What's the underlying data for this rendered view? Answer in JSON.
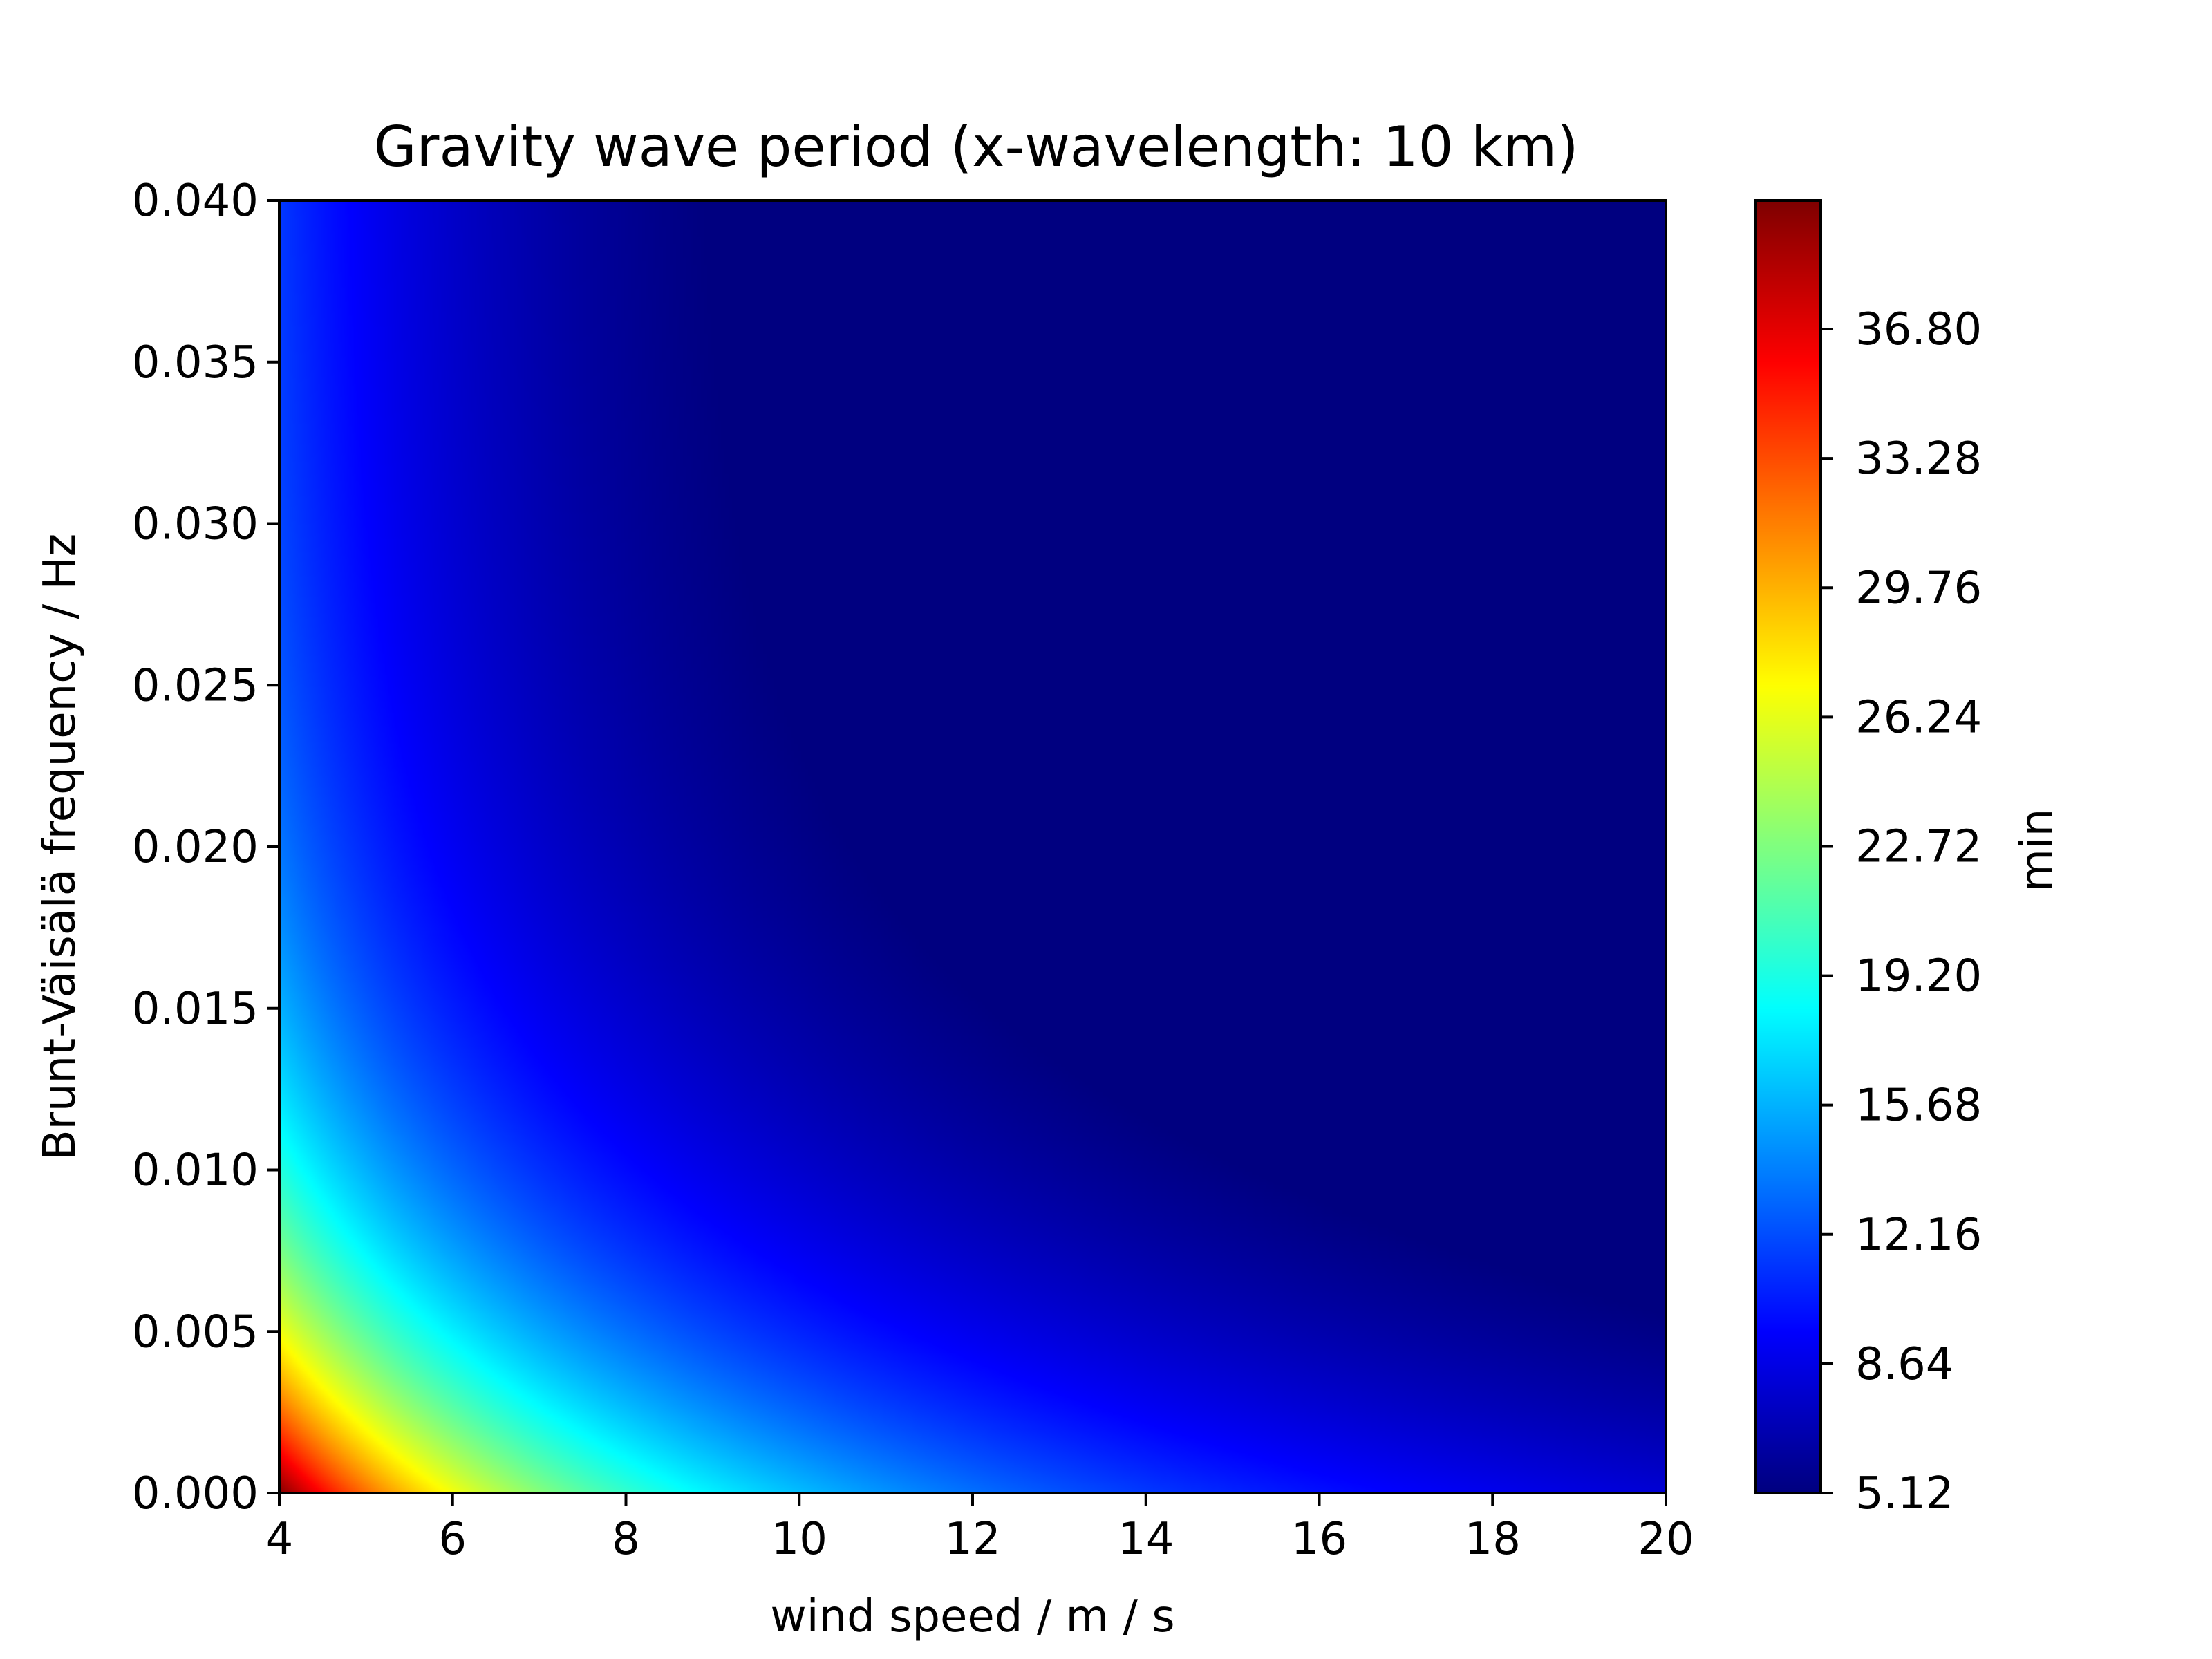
{
  "chart_data": {
    "type": "heatmap",
    "title": "Gravity wave period (x-wavelength: 10 km)",
    "xlabel": "wind speed / m / s",
    "ylabel": "Brunt-Väisälä frequency / Hz",
    "xlim": [
      4,
      20
    ],
    "ylim": [
      0.0,
      0.04
    ],
    "x_ticks": [
      4,
      6,
      8,
      10,
      12,
      14,
      16,
      18,
      20
    ],
    "x_tick_labels": [
      "4",
      "6",
      "8",
      "10",
      "12",
      "14",
      "16",
      "18",
      "20"
    ],
    "y_ticks": [
      0.0,
      0.005,
      0.01,
      0.015,
      0.02,
      0.025,
      0.03,
      0.035,
      0.04
    ],
    "y_tick_labels": [
      "0.000",
      "0.005",
      "0.010",
      "0.015",
      "0.020",
      "0.025",
      "0.030",
      "0.035",
      "0.040"
    ],
    "colormap": "jet",
    "colorbar": {
      "label": "min",
      "range": [
        5.12,
        40.3
      ],
      "ticks": [
        5.12,
        8.64,
        12.16,
        15.68,
        19.2,
        22.72,
        26.24,
        29.76,
        33.28,
        36.8
      ],
      "tick_labels": [
        "5.12",
        "8.64",
        "12.16",
        "15.68",
        "19.20",
        "22.72",
        "26.24",
        "29.76",
        "33.28",
        "36.80"
      ]
    },
    "sampled_values": [
      {
        "wind_speed": 4,
        "brunt_vaisala_frequency": 0.0,
        "period_min": 40.3
      },
      {
        "wind_speed": 6,
        "brunt_vaisala_frequency": 0.0,
        "period_min": 26.5
      },
      {
        "wind_speed": 9,
        "brunt_vaisala_frequency": 0.0,
        "period_min": 18.0
      },
      {
        "wind_speed": 12,
        "brunt_vaisala_frequency": 0.0,
        "period_min": 13.2
      },
      {
        "wind_speed": 20,
        "brunt_vaisala_frequency": 0.0,
        "period_min": 8.2
      },
      {
        "wind_speed": 4,
        "brunt_vaisala_frequency": 0.005,
        "period_min": 29.0
      },
      {
        "wind_speed": 4,
        "brunt_vaisala_frequency": 0.01,
        "period_min": 22.0
      },
      {
        "wind_speed": 4,
        "brunt_vaisala_frequency": 0.02,
        "period_min": 14.5
      },
      {
        "wind_speed": 4,
        "brunt_vaisala_frequency": 0.04,
        "period_min": 10.0
      },
      {
        "wind_speed": 10,
        "brunt_vaisala_frequency": 0.02,
        "period_min": 10.0
      },
      {
        "wind_speed": 20,
        "brunt_vaisala_frequency": 0.04,
        "period_min": 5.12
      }
    ]
  }
}
